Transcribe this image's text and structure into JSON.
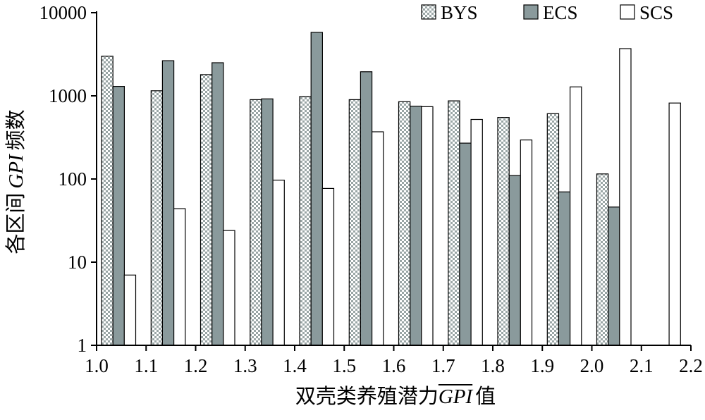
{
  "chart_data": {
    "type": "bar",
    "title": "",
    "xlabel": "双壳类养殖潜力",
    "xlabel_symbol": "GPI",
    "xlabel_suffix": "值",
    "ylabel_prefix": "各区间",
    "ylabel_symbol": "GPI",
    "ylabel_suffix": "频数",
    "y_scale": "log",
    "ylim": [
      1,
      10000
    ],
    "y_ticks": [
      1,
      10,
      100,
      1000,
      10000
    ],
    "y_tick_labels": [
      "1",
      "10",
      "100",
      "1000",
      "10000"
    ],
    "x_tick_labels": [
      "1.0",
      "1.1",
      "1.2",
      "1.3",
      "1.4",
      "1.5",
      "1.6",
      "1.7",
      "1.8",
      "1.9",
      "2.0",
      "2.1",
      "2.2"
    ],
    "bins": [
      {
        "from": 1.0,
        "to": 1.1
      },
      {
        "from": 1.1,
        "to": 1.2
      },
      {
        "from": 1.2,
        "to": 1.3
      },
      {
        "from": 1.3,
        "to": 1.4
      },
      {
        "from": 1.4,
        "to": 1.5
      },
      {
        "from": 1.5,
        "to": 1.6
      },
      {
        "from": 1.6,
        "to": 1.7
      },
      {
        "from": 1.7,
        "to": 1.8
      },
      {
        "from": 1.8,
        "to": 1.9
      },
      {
        "from": 1.9,
        "to": 2.0
      },
      {
        "from": 2.0,
        "to": 2.1
      },
      {
        "from": 2.1,
        "to": 2.2
      }
    ],
    "legend_position": "top-right",
    "grid": false,
    "series": [
      {
        "name": "BYS",
        "fill": "pattern",
        "color": "#a9b4b4",
        "values": [
          3000,
          1150,
          1800,
          900,
          980,
          900,
          850,
          870,
          550,
          610,
          115,
          null
        ]
      },
      {
        "name": "ECS",
        "fill": "solid",
        "color": "#8a9a9c",
        "values": [
          1300,
          2650,
          2500,
          920,
          5800,
          1950,
          750,
          270,
          110,
          70,
          46,
          null
        ]
      },
      {
        "name": "SCS",
        "fill": "solid",
        "color": "#ffffff",
        "values": [
          7,
          44,
          24,
          97,
          77,
          370,
          740,
          520,
          295,
          1280,
          3700,
          820
        ]
      }
    ]
  }
}
